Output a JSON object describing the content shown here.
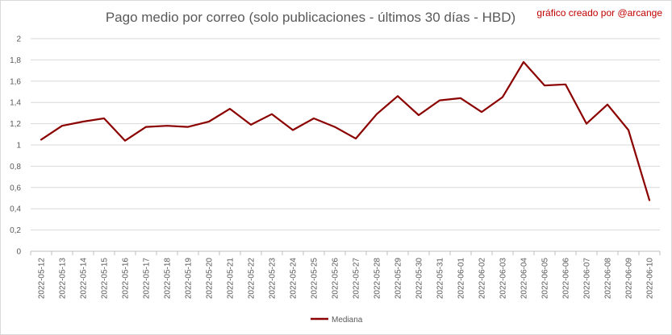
{
  "chart_data": {
    "type": "line",
    "title": "Pago medio por correo (solo publicaciones - últimos 30 días - HBD)",
    "annotation": "gráfico creado por @arcange",
    "xlabel": "",
    "ylabel": "",
    "ylim": [
      0,
      2
    ],
    "yticks": [
      "0",
      "0,2",
      "0,4",
      "0,6",
      "0,8",
      "1",
      "1,2",
      "1,4",
      "1,6",
      "1,8",
      "2"
    ],
    "grid": true,
    "legend_position": "bottom",
    "categories": [
      "2022-05-12",
      "2022-05-13",
      "2022-05-14",
      "2022-05-15",
      "2022-05-16",
      "2022-05-17",
      "2022-05-18",
      "2022-05-19",
      "2022-05-20",
      "2022-05-21",
      "2022-05-22",
      "2022-05-23",
      "2022-05-24",
      "2022-05-25",
      "2022-05-26",
      "2022-05-27",
      "2022-05-28",
      "2022-05-29",
      "2022-05-30",
      "2022-05-31",
      "2022-06-01",
      "2022-06-02",
      "2022-06-03",
      "2022-06-04",
      "2022-06-05",
      "2022-06-06",
      "2022-06-07",
      "2022-06-08",
      "2022-06-09",
      "2022-06-10"
    ],
    "series": [
      {
        "name": "Mediana",
        "color": "#8b0000",
        "values": [
          1.05,
          1.18,
          1.22,
          1.25,
          1.04,
          1.17,
          1.18,
          1.17,
          1.22,
          1.34,
          1.19,
          1.29,
          1.14,
          1.25,
          1.17,
          1.06,
          1.29,
          1.46,
          1.28,
          1.42,
          1.44,
          1.31,
          1.45,
          1.78,
          1.56,
          1.57,
          1.2,
          1.38,
          1.14,
          0.48
        ]
      }
    ]
  }
}
